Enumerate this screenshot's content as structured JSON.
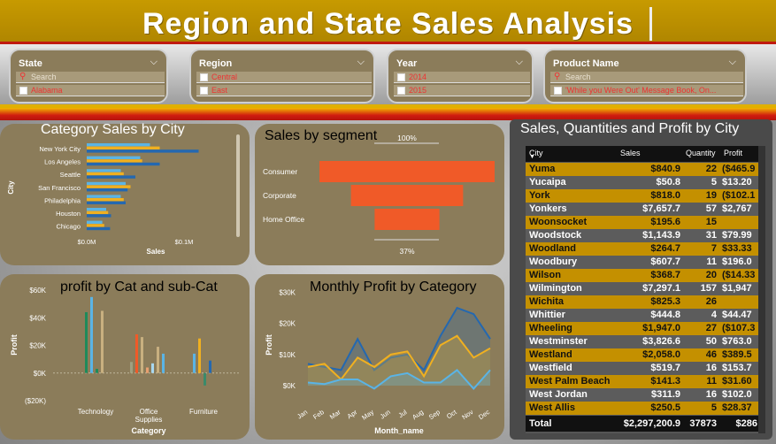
{
  "title": "Region and State Sales Analysis",
  "slicers": {
    "state": {
      "title": "State",
      "search": "Search",
      "items": [
        "Alabama"
      ]
    },
    "region": {
      "title": "Region",
      "items": [
        "Central",
        "East"
      ]
    },
    "year": {
      "title": "Year",
      "items": [
        "2014",
        "2015"
      ]
    },
    "product": {
      "title": "Product Name",
      "search": "Search",
      "items": [
        "'While you Were Out' Message Book, On..."
      ]
    }
  },
  "colors": {
    "gold": "#b08600",
    "card": "#8b7c5a",
    "red": "#d01c10",
    "funnel": "#f05a28",
    "row_gold": "#c49000",
    "row_gray": "#5c5c5c"
  },
  "chart_data": [
    {
      "type": "bar",
      "title": "Category Sales by City",
      "xlabel": "Sales",
      "ylabel": "City",
      "categories": [
        "New York City",
        "Los Angeles",
        "Seattle",
        "San Francisco",
        "Philadelphia",
        "Houston",
        "Chicago"
      ],
      "x_ticks": [
        "$0.0M",
        "$0.1M"
      ],
      "xlim": [
        0,
        0.12
      ],
      "series": [
        {
          "color": "#5ab4e6",
          "values": [
            0.065,
            0.055,
            0.035,
            0.04,
            0.035,
            0.02,
            0.016
          ]
        },
        {
          "color": "#f0b020",
          "values": [
            0.075,
            0.057,
            0.038,
            0.045,
            0.038,
            0.022,
            0.018
          ]
        },
        {
          "color": "#2468b0",
          "values": [
            0.115,
            0.075,
            0.05,
            0.042,
            0.04,
            0.025,
            0.024
          ]
        }
      ]
    },
    {
      "type": "funnel",
      "title": "Sales by segment",
      "categories": [
        "Consumer",
        "Corporate",
        "Home Office"
      ],
      "values": [
        100,
        64,
        37
      ],
      "top_label": "100%",
      "bottom_label": "37%"
    },
    {
      "type": "bar",
      "title": "profit by Cat and sub-Cat",
      "xlabel": "Category",
      "ylabel": "Profit",
      "categories": [
        "Technology",
        "Office Supplies",
        "Furniture"
      ],
      "y_ticks": [
        "$60K",
        "$40K",
        "$20K",
        "$0K",
        "($20K)"
      ],
      "ylim": [
        -20,
        60
      ],
      "groups": [
        [
          {
            "c": "#1e8a5a",
            "v": 44
          },
          {
            "c": "#5ab4e6",
            "v": 55
          },
          {
            "c": "#1e8a5a",
            "v": 3
          },
          {
            "c": "#c8b080",
            "v": 45
          }
        ],
        [
          {
            "c": "#a0a080",
            "v": 8
          },
          {
            "c": "#f05a28",
            "v": 28
          },
          {
            "c": "#c8b080",
            "v": 26
          },
          {
            "c": "#e8a070",
            "v": 4
          },
          {
            "c": "#a8d8f0",
            "v": 7
          },
          {
            "c": "#c8b080",
            "v": 19
          },
          {
            "c": "#5ab4e6",
            "v": 14
          }
        ],
        [
          {
            "c": "#5ab4e6",
            "v": 14
          },
          {
            "c": "#f0b020",
            "v": 25
          },
          {
            "c": "#3a8a6a",
            "v": -9
          },
          {
            "c": "#2468b0",
            "v": 9
          }
        ]
      ]
    },
    {
      "type": "area",
      "title": "Monthly Profit by Category",
      "xlabel": "Month_name",
      "ylabel": "Profit",
      "categories": [
        "Jan",
        "Feb",
        "Mar",
        "Apr",
        "May",
        "Jun",
        "Jul",
        "Aug",
        "Sep",
        "Oct",
        "Nov",
        "Dec"
      ],
      "y_ticks": [
        "$30K",
        "$20K",
        "$10K",
        "$0K"
      ],
      "ylim": [
        -2,
        31
      ],
      "series": [
        {
          "color": "#2468b0",
          "values": [
            7,
            6,
            5,
            15,
            5,
            9,
            10,
            5,
            16,
            25,
            23,
            15
          ]
        },
        {
          "color": "#f0b020",
          "values": [
            6,
            7,
            2,
            9,
            6,
            10,
            11,
            3,
            13,
            16,
            9,
            12
          ]
        },
        {
          "color": "#5ab4e6",
          "values": [
            1,
            0.5,
            2,
            2,
            -1,
            3,
            4,
            1,
            1,
            5,
            -1,
            5
          ]
        }
      ]
    }
  ],
  "table": {
    "title": "Sales, Quantities and Profit by City",
    "columns": [
      "City",
      "Sales",
      "Quantity",
      "Profit"
    ],
    "rows": [
      [
        "Yuma",
        "$840.9",
        "22",
        "($465.9"
      ],
      [
        "Yucaipa",
        "$50.8",
        "5",
        "$13.20"
      ],
      [
        "York",
        "$818.0",
        "19",
        "($102.1"
      ],
      [
        "Yonkers",
        "$7,657.7",
        "57",
        "$2,767"
      ],
      [
        "Woonsocket",
        "$195.6",
        "15",
        ""
      ],
      [
        "Woodstock",
        "$1,143.9",
        "31",
        "$79.99"
      ],
      [
        "Woodland",
        "$264.7",
        "7",
        "$33.33"
      ],
      [
        "Woodbury",
        "$607.7",
        "11",
        "$196.0"
      ],
      [
        "Wilson",
        "$368.7",
        "20",
        "($14.33"
      ],
      [
        "Wilmington",
        "$7,297.1",
        "157",
        "$1,947"
      ],
      [
        "Wichita",
        "$825.3",
        "26",
        ""
      ],
      [
        "Whittier",
        "$444.8",
        "4",
        "$44.47"
      ],
      [
        "Wheeling",
        "$1,947.0",
        "27",
        "($107.3"
      ],
      [
        "Westminster",
        "$3,826.6",
        "50",
        "$763.0"
      ],
      [
        "Westland",
        "$2,058.0",
        "46",
        "$389.5"
      ],
      [
        "Westfield",
        "$519.7",
        "16",
        "$153.7"
      ],
      [
        "West Palm Beach",
        "$141.3",
        "11",
        "$31.60"
      ],
      [
        "West Jordan",
        "$311.9",
        "16",
        "$102.0"
      ],
      [
        "West Allis",
        "$250.5",
        "5",
        "$28.37"
      ]
    ],
    "total": [
      "Total",
      "$2,297,200.9",
      "37873",
      "$286"
    ]
  }
}
